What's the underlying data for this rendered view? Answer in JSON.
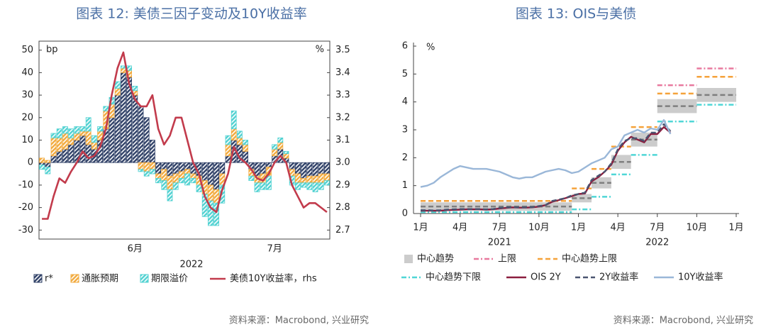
{
  "chart_data": [
    {
      "type": "bar",
      "title": "图表 12: 美债三因子变动及10Y收益率",
      "y_unit": "bp",
      "y2_unit": "%",
      "xlabel": "2022",
      "categories": [
        null,
        null,
        null,
        null,
        null,
        null,
        null,
        null,
        null,
        null,
        null,
        null,
        null,
        null,
        null,
        null,
        "6月",
        null,
        null,
        null,
        null,
        null,
        null,
        null,
        null,
        null,
        null,
        null,
        null,
        null,
        null,
        null,
        null,
        null,
        null,
        null,
        null,
        null,
        null,
        null,
        "7月",
        null,
        null,
        null,
        null,
        null,
        null,
        null,
        null,
        null
      ],
      "series": [
        {
          "name": "r*",
          "color": "#2e3f66",
          "values": [
            -1,
            -2,
            3,
            5,
            6,
            8,
            10,
            12,
            8,
            6,
            10,
            15,
            20,
            30,
            40,
            38,
            30,
            25,
            20,
            10,
            -5,
            -3,
            -6,
            -5,
            -4,
            -3,
            -5,
            -6,
            -8,
            -10,
            -12,
            -5,
            3,
            10,
            8,
            5,
            -3,
            -6,
            -5,
            -2,
            3,
            6,
            2,
            -3,
            -5,
            -7,
            -6,
            -6,
            -5,
            -5
          ]
        },
        {
          "name": "通胀预期",
          "color": "#f2a93b",
          "values": [
            2,
            1,
            8,
            6,
            7,
            3,
            3,
            2,
            6,
            3,
            4,
            8,
            6,
            3,
            2,
            3,
            2,
            -3,
            -4,
            -3,
            -2,
            -5,
            -6,
            -4,
            -3,
            -2,
            -2,
            -4,
            -6,
            -7,
            -6,
            -5,
            5,
            5,
            3,
            3,
            -3,
            -3,
            -4,
            -4,
            3,
            3,
            2,
            -3,
            -4,
            -2,
            -3,
            -3,
            -4,
            -3
          ]
        },
        {
          "name": "期限溢价",
          "color": "#4fd1d1",
          "values": [
            -2,
            -3,
            2,
            4,
            3,
            4,
            3,
            2,
            6,
            3,
            2,
            2,
            3,
            3,
            1,
            2,
            2,
            -1,
            -2,
            -2,
            -2,
            -4,
            -5,
            -3,
            -2,
            -5,
            -2,
            -3,
            -10,
            -11,
            -10,
            -8,
            4,
            8,
            3,
            2,
            -2,
            -4,
            -3,
            -6,
            2,
            2,
            1,
            -4,
            -3,
            -2,
            -3,
            -4,
            -3,
            -2
          ]
        },
        {
          "name": "美债10Y收益率，rhs",
          "color": "#c23b4c",
          "type": "line",
          "axis": "y2",
          "values": [
            2.75,
            2.75,
            2.85,
            2.93,
            2.91,
            2.96,
            3.0,
            3.05,
            3.02,
            3.03,
            3.07,
            3.15,
            3.3,
            3.42,
            3.49,
            3.35,
            3.28,
            3.25,
            3.25,
            3.3,
            3.15,
            3.08,
            3.12,
            3.2,
            3.2,
            3.1,
            3.0,
            2.95,
            2.85,
            2.8,
            2.78,
            2.88,
            2.95,
            3.07,
            3.02,
            3.0,
            2.97,
            2.93,
            2.92,
            2.95,
            3.0,
            3.03,
            3.0,
            2.9,
            2.85,
            2.8,
            2.82,
            2.82,
            2.8,
            2.78
          ]
        }
      ],
      "ylim": [
        -34,
        54
      ],
      "yticks": [
        -30,
        -20,
        -10,
        0,
        10,
        20,
        30,
        40,
        50
      ],
      "y2lim": [
        2.66,
        3.54
      ],
      "y2ticks": [
        2.7,
        2.8,
        2.9,
        {
          "value": 3,
          "label": "3.0"
        },
        3.1,
        3.2,
        3.3,
        3.4,
        3.5
      ],
      "source": "资料来源：Macrobond, 兴业研究"
    },
    {
      "type": "line",
      "title": "图表 13: OIS与美债",
      "y_unit": "%",
      "xlim": [
        0,
        24
      ],
      "xticks": [
        {
          "value": 0,
          "label": "1月"
        },
        {
          "value": 3,
          "label": "4月"
        },
        {
          "value": 6,
          "label": "7月"
        },
        {
          "value": 9,
          "label": "10月"
        },
        {
          "value": 12,
          "label": "1月"
        },
        {
          "value": 15,
          "label": "4月"
        },
        {
          "value": 18,
          "label": "7月"
        },
        {
          "value": 21,
          "label": "10月"
        },
        {
          "value": 24,
          "label": "1月"
        }
      ],
      "x_years": [
        {
          "value": 6,
          "label": "2021"
        },
        {
          "value": 18,
          "label": "2022"
        }
      ],
      "ylim": [
        0,
        6
      ],
      "yticks": [
        0,
        1,
        2,
        3,
        4,
        5,
        6
      ],
      "x": [
        0,
        0.5,
        1,
        1.5,
        2,
        2.5,
        3,
        3.5,
        4,
        4.5,
        5,
        5.5,
        6,
        6.5,
        7,
        7.5,
        8,
        8.5,
        9,
        9.5,
        10,
        10.5,
        11,
        11.5,
        12,
        12.5,
        13,
        13.5,
        14,
        14.5,
        15,
        15.5,
        16,
        16.5,
        17,
        17.5,
        18,
        18.5,
        19
      ],
      "series": [
        {
          "name": "中心趋势",
          "style": "band",
          "color": "#cccccc",
          "mid_color": "#7f7f7f",
          "x": [
            0,
            11.5,
            13,
            14.5,
            16,
            18,
            21,
            24
          ],
          "low": [
            0.1,
            0.4,
            0.9,
            1.6,
            2.4,
            3.6,
            4.0,
            4.0
          ],
          "high": [
            0.4,
            0.7,
            1.3,
            2.1,
            2.9,
            4.1,
            4.5,
            4.5
          ],
          "mid": [
            0.25,
            0.55,
            1.1,
            1.85,
            2.65,
            3.85,
            4.25,
            4.25
          ]
        },
        {
          "name": "上限",
          "style": "step",
          "dash": "dashdot",
          "color": "#e8799e",
          "x": [
            0,
            11.5,
            13,
            14.5,
            16,
            18,
            21,
            24
          ],
          "values": [
            null,
            null,
            null,
            null,
            null,
            4.6,
            5.2,
            5.2
          ]
        },
        {
          "name": "中心趋势上限",
          "style": "step",
          "dash": "dash",
          "color": "#f5a23a",
          "x": [
            0,
            11.5,
            13,
            14.5,
            16,
            18,
            21,
            24
          ],
          "values": [
            0.45,
            0.9,
            1.6,
            2.4,
            3.1,
            4.3,
            4.9,
            4.9
          ]
        },
        {
          "name": "中心趋势下限",
          "style": "step",
          "dash": "dashdot",
          "color": "#4fd6d6",
          "x": [
            0,
            11.5,
            13,
            14.5,
            16,
            18,
            21,
            24
          ],
          "values": [
            0.05,
            0.15,
            0.6,
            1.4,
            2.1,
            3.3,
            3.9,
            3.9
          ]
        },
        {
          "name": "OIS 2Y",
          "style": "line",
          "dash": "solid",
          "color": "#8b1e3f",
          "values": [
            0.1,
            0.1,
            0.1,
            0.1,
            0.12,
            0.13,
            0.14,
            0.15,
            0.15,
            0.15,
            0.14,
            0.15,
            0.18,
            0.2,
            0.22,
            0.21,
            0.21,
            0.22,
            0.25,
            0.3,
            0.42,
            0.48,
            0.55,
            0.62,
            0.7,
            0.72,
            1.15,
            1.3,
            1.5,
            1.75,
            2.25,
            2.55,
            2.75,
            2.65,
            2.55,
            2.85,
            2.85,
            3.1,
            2.9
          ]
        },
        {
          "name": "2Y收益率",
          "style": "line",
          "dash": "dash",
          "color": "#4a5570",
          "values": [
            0.12,
            0.12,
            0.11,
            0.12,
            0.14,
            0.15,
            0.16,
            0.16,
            0.16,
            0.16,
            0.15,
            0.16,
            0.2,
            0.22,
            0.23,
            0.22,
            0.22,
            0.23,
            0.27,
            0.3,
            0.45,
            0.5,
            0.55,
            0.65,
            0.7,
            0.75,
            1.2,
            1.35,
            1.5,
            1.8,
            2.3,
            2.6,
            2.7,
            2.7,
            2.6,
            2.9,
            2.9,
            3.2,
            2.95
          ]
        },
        {
          "name": "10Y收益率",
          "style": "line",
          "dash": "solid",
          "color": "#9ab7d8",
          "values": [
            0.95,
            1.0,
            1.1,
            1.3,
            1.45,
            1.6,
            1.7,
            1.65,
            1.6,
            1.6,
            1.6,
            1.55,
            1.5,
            1.4,
            1.3,
            1.25,
            1.3,
            1.3,
            1.4,
            1.5,
            1.55,
            1.6,
            1.55,
            1.45,
            1.5,
            1.65,
            1.8,
            1.9,
            2.0,
            2.3,
            2.4,
            2.8,
            2.9,
            3.0,
            2.9,
            3.05,
            3.0,
            3.35,
            2.85
          ]
        }
      ],
      "source": "资料来源：Macrobond, 兴业研究"
    }
  ]
}
